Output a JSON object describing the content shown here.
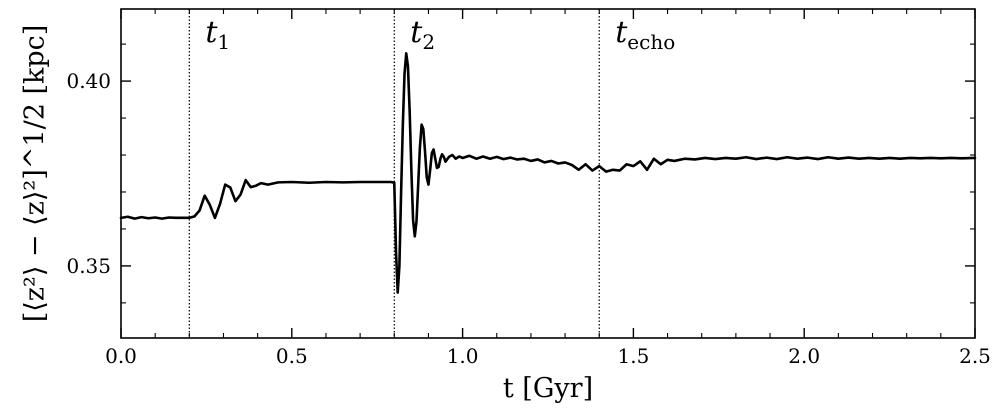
{
  "chart_data": {
    "type": "line",
    "xlabel": "t [Gyr]",
    "ylabel": "[⟨z²⟩ − ⟨z⟩²]^1/2 [kpc]",
    "xlim": [
      0.0,
      2.5
    ],
    "ylim": [
      0.3305,
      0.4195
    ],
    "x_ticks": [
      0.0,
      0.5,
      1.0,
      1.5,
      2.0,
      2.5
    ],
    "x_tick_labels": [
      "0.0",
      "0.5",
      "1.0",
      "1.5",
      "2.0",
      "2.5"
    ],
    "y_ticks": [
      0.35,
      0.4
    ],
    "y_tick_labels": [
      "0.35",
      "0.40"
    ],
    "x_minor_step": 0.1,
    "y_minor_step": 0.01,
    "grid": false,
    "vlines": [
      {
        "x": 0.2,
        "label_main": "t",
        "label_sub": "1"
      },
      {
        "x": 0.8,
        "label_main": "t",
        "label_sub": "2"
      },
      {
        "x": 1.4,
        "label_main": "t",
        "label_sub": "echo"
      }
    ],
    "series": [
      {
        "color": "#000000",
        "x": [
          0.0,
          0.02,
          0.04,
          0.06,
          0.08,
          0.1,
          0.12,
          0.14,
          0.16,
          0.18,
          0.2,
          0.215,
          0.23,
          0.245,
          0.26,
          0.275,
          0.29,
          0.305,
          0.32,
          0.335,
          0.35,
          0.365,
          0.38,
          0.395,
          0.41,
          0.43,
          0.46,
          0.5,
          0.55,
          0.6,
          0.65,
          0.7,
          0.75,
          0.79,
          0.8,
          0.805,
          0.81,
          0.815,
          0.82,
          0.825,
          0.83,
          0.835,
          0.84,
          0.845,
          0.85,
          0.855,
          0.86,
          0.865,
          0.87,
          0.875,
          0.88,
          0.885,
          0.89,
          0.895,
          0.9,
          0.905,
          0.91,
          0.915,
          0.92,
          0.925,
          0.93,
          0.935,
          0.94,
          0.945,
          0.95,
          0.96,
          0.97,
          0.98,
          0.99,
          1.0,
          1.02,
          1.04,
          1.06,
          1.08,
          1.1,
          1.12,
          1.14,
          1.16,
          1.18,
          1.2,
          1.22,
          1.24,
          1.26,
          1.28,
          1.3,
          1.32,
          1.34,
          1.36,
          1.38,
          1.4,
          1.42,
          1.44,
          1.46,
          1.48,
          1.5,
          1.52,
          1.54,
          1.56,
          1.58,
          1.6,
          1.62,
          1.65,
          1.68,
          1.71,
          1.74,
          1.77,
          1.8,
          1.83,
          1.86,
          1.89,
          1.92,
          1.95,
          1.98,
          2.01,
          2.04,
          2.07,
          2.1,
          2.13,
          2.16,
          2.19,
          2.22,
          2.25,
          2.28,
          2.31,
          2.34,
          2.37,
          2.4,
          2.43,
          2.46,
          2.5
        ],
        "y": [
          0.363,
          0.3633,
          0.3628,
          0.3632,
          0.3629,
          0.3631,
          0.3628,
          0.3631,
          0.363,
          0.363,
          0.363,
          0.3634,
          0.365,
          0.369,
          0.3665,
          0.363,
          0.3668,
          0.372,
          0.3712,
          0.3675,
          0.3693,
          0.3732,
          0.3713,
          0.3717,
          0.3724,
          0.372,
          0.3726,
          0.3727,
          0.3725,
          0.3727,
          0.3726,
          0.3727,
          0.3727,
          0.3727,
          0.3725,
          0.354,
          0.3428,
          0.35,
          0.37,
          0.388,
          0.402,
          0.4075,
          0.404,
          0.392,
          0.376,
          0.3625,
          0.358,
          0.362,
          0.372,
          0.382,
          0.3882,
          0.387,
          0.381,
          0.374,
          0.372,
          0.376,
          0.3805,
          0.3815,
          0.379,
          0.3765,
          0.3768,
          0.379,
          0.3802,
          0.3795,
          0.3782,
          0.3795,
          0.38,
          0.379,
          0.3796,
          0.3792,
          0.3798,
          0.379,
          0.3796,
          0.379,
          0.3795,
          0.3789,
          0.3793,
          0.3788,
          0.379,
          0.3784,
          0.3788,
          0.378,
          0.3784,
          0.3777,
          0.378,
          0.3773,
          0.376,
          0.3775,
          0.3758,
          0.377,
          0.3755,
          0.376,
          0.3758,
          0.3775,
          0.377,
          0.3783,
          0.376,
          0.379,
          0.3775,
          0.3787,
          0.3784,
          0.379,
          0.3788,
          0.3792,
          0.3789,
          0.3792,
          0.379,
          0.3794,
          0.3789,
          0.3793,
          0.3789,
          0.3794,
          0.379,
          0.3793,
          0.3789,
          0.3794,
          0.379,
          0.3793,
          0.379,
          0.3792,
          0.379,
          0.3792,
          0.379,
          0.3792,
          0.3791,
          0.3792,
          0.3791,
          0.3792,
          0.3791,
          0.3792
        ]
      }
    ]
  }
}
